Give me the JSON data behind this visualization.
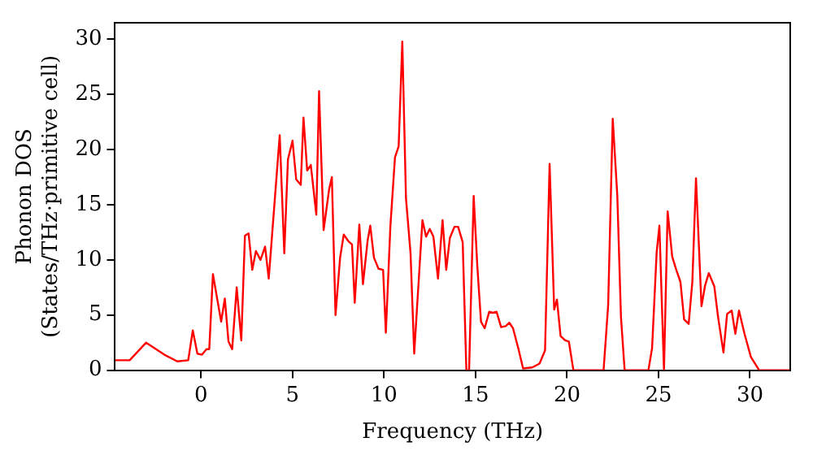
{
  "chart_data": {
    "type": "line",
    "xlabel": "Frequency (THz)",
    "ylabel": "Phonon DOS\n(States/THz·primitive cell)",
    "xlim": [
      -4.7,
      32.2
    ],
    "ylim": [
      0,
      31.5
    ],
    "xticks": [
      0,
      5,
      10,
      15,
      20,
      25,
      30
    ],
    "yticks": [
      0,
      5,
      10,
      15,
      20,
      25,
      30
    ],
    "grid": false,
    "legend": false,
    "marker": "none",
    "line_style": "solid",
    "series": [
      {
        "color": "#ff0000",
        "x": [
          -4.7,
          -3.9,
          -3.0,
          -2.0,
          -1.3,
          -0.7,
          -0.45,
          -0.2,
          0.05,
          0.3,
          0.45,
          0.65,
          1.1,
          1.3,
          1.5,
          1.7,
          1.95,
          2.2,
          2.4,
          2.6,
          2.8,
          3.0,
          3.25,
          3.5,
          3.7,
          4.3,
          4.55,
          4.75,
          5.0,
          5.2,
          5.45,
          5.6,
          5.8,
          6.0,
          6.3,
          6.45,
          6.7,
          7.0,
          7.15,
          7.35,
          7.6,
          7.8,
          8.05,
          8.25,
          8.4,
          8.65,
          8.85,
          9.1,
          9.25,
          9.45,
          9.7,
          9.95,
          10.1,
          10.35,
          10.6,
          10.8,
          11.0,
          11.2,
          11.45,
          11.65,
          12.1,
          12.3,
          12.5,
          12.7,
          12.95,
          13.2,
          13.4,
          13.6,
          13.85,
          14.05,
          14.3,
          14.5,
          14.65,
          14.9,
          15.1,
          15.3,
          15.5,
          15.75,
          15.95,
          16.15,
          16.4,
          16.65,
          16.85,
          17.05,
          17.35,
          17.6,
          18.1,
          18.5,
          18.8,
          19.05,
          19.3,
          19.45,
          19.65,
          19.9,
          20.1,
          20.35,
          22.0,
          22.25,
          22.5,
          22.75,
          22.95,
          23.15,
          24.45,
          24.65,
          24.9,
          25.05,
          25.3,
          25.5,
          25.75,
          25.95,
          26.2,
          26.4,
          26.65,
          26.85,
          27.05,
          27.35,
          27.55,
          27.75,
          28.05,
          28.25,
          28.55,
          28.75,
          29.0,
          29.2,
          29.4,
          29.7,
          30.05,
          30.5,
          32.2
        ],
        "values": [
          0.9,
          0.9,
          2.5,
          1.4,
          0.8,
          0.9,
          3.6,
          1.5,
          1.4,
          1.9,
          1.9,
          8.7,
          4.4,
          6.5,
          2.6,
          1.9,
          7.5,
          2.7,
          12.2,
          12.4,
          9.1,
          10.8,
          10,
          11.2,
          8.3,
          21.3,
          10.6,
          19.1,
          20.8,
          17.3,
          16.8,
          22.9,
          18.1,
          18.6,
          14.1,
          25.3,
          12.7,
          16.4,
          17.5,
          5.0,
          10.2,
          12.3,
          11.7,
          11.4,
          6.1,
          13.2,
          7.8,
          11.7,
          13.1,
          10.2,
          9.2,
          9.1,
          3.4,
          13.1,
          19.3,
          20.3,
          29.8,
          15.6,
          10.6,
          1.5,
          13.6,
          12.1,
          12.8,
          12.1,
          8.3,
          13.6,
          9.1,
          12.0,
          13.0,
          13.0,
          11.6,
          0,
          0,
          15.8,
          9.4,
          4.4,
          3.8,
          5.3,
          5.2,
          5.3,
          3.9,
          4.0,
          4.3,
          3.8,
          1.9,
          0.15,
          0.25,
          0.6,
          1.8,
          18.7,
          5.5,
          6.4,
          3.1,
          2.7,
          2.6,
          0,
          0,
          5.9,
          22.8,
          15.8,
          4.8,
          0,
          0,
          2.0,
          10.7,
          13.1,
          0,
          14.4,
          10.3,
          9.2,
          8.0,
          4.6,
          4.2,
          8.0,
          17.4,
          5.8,
          7.7,
          8.8,
          7.6,
          4.9,
          1.6,
          5.1,
          5.4,
          3.3,
          5.4,
          3.3,
          1.2,
          0,
          0
        ]
      }
    ]
  }
}
